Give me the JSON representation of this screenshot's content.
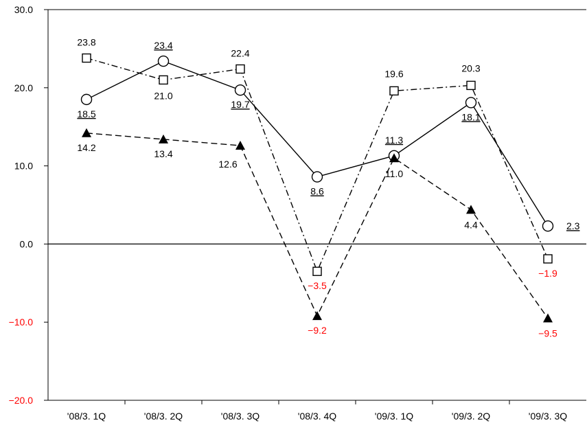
{
  "chart_data": {
    "type": "line",
    "categories": [
      "'08/3. 1Q",
      "'08/3. 2Q",
      "'08/3. 3Q",
      "'08/3. 4Q",
      "'09/3. 1Q",
      "'09/3. 2Q",
      "'09/3. 3Q"
    ],
    "ylim": [
      -20,
      30
    ],
    "y_ticks": [
      "30.0",
      "20.0",
      "10.0",
      "0.0",
      "-10.0",
      "-20.0"
    ],
    "grid": false,
    "series": [
      {
        "marker": "open-circle",
        "line_style": "solid",
        "values": [
          18.5,
          23.4,
          19.7,
          8.6,
          11.3,
          18.1,
          2.3
        ],
        "labels": [
          "18.5",
          "23.4",
          "19.7",
          "8.6",
          "11.3",
          "18.1",
          "2.3"
        ],
        "labels_underlined": true
      },
      {
        "marker": "open-square",
        "line_style": "dash-dot",
        "values": [
          23.8,
          21.0,
          22.4,
          -3.5,
          19.6,
          20.3,
          -1.9
        ],
        "labels": [
          "23.8",
          "21.0",
          "22.4",
          "−3.5",
          "19.6",
          "20.3",
          "−1.9"
        ]
      },
      {
        "marker": "filled-triangle",
        "line_style": "dashed",
        "values": [
          14.2,
          13.4,
          12.6,
          -9.2,
          11.0,
          4.4,
          -9.5
        ],
        "labels": [
          "14.2",
          "13.4",
          "12.6",
          "−9.2",
          "11.0",
          "4.4",
          "−9.5"
        ]
      }
    ],
    "colors": {
      "line": "#000000",
      "positive_text": "#000000",
      "negative_text": "#ff0000",
      "negative_tick_text": "#ff0000"
    }
  }
}
